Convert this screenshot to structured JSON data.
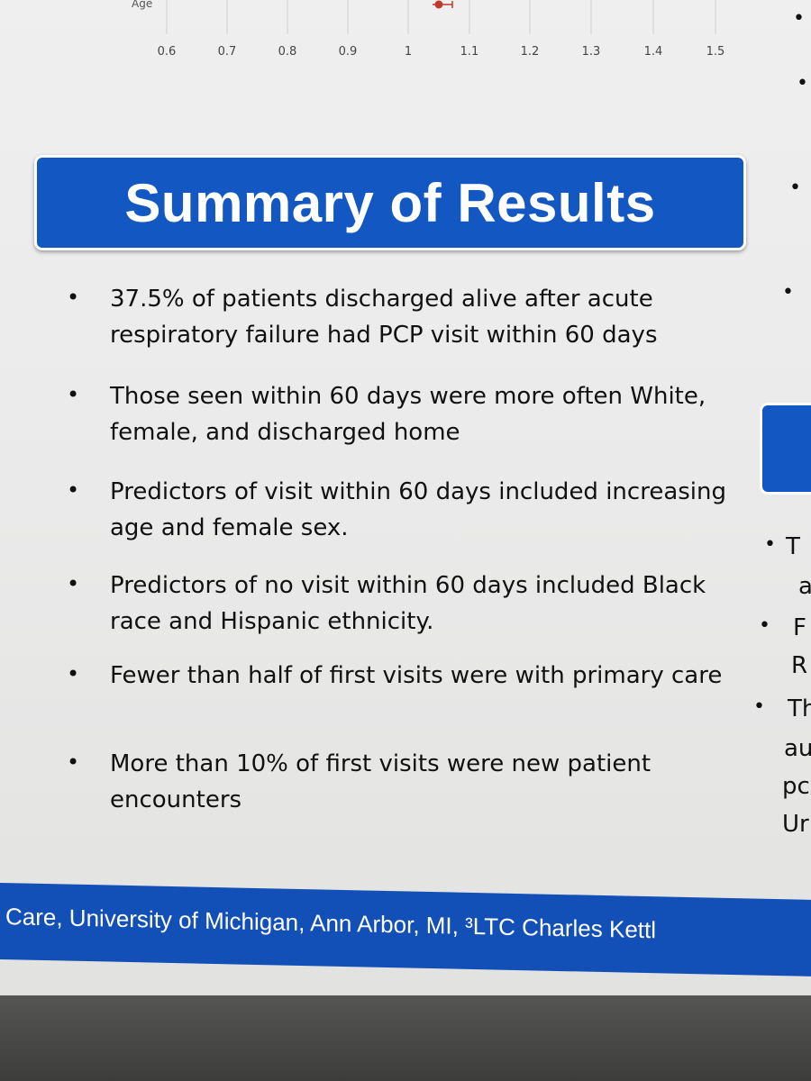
{
  "top_chart": {
    "axis_label": "Age",
    "ticks": [
      "0.6",
      "0.7",
      "0.8",
      "0.9",
      "1",
      "1.1",
      "1.2",
      "1.3",
      "1.4",
      "1.5"
    ],
    "marker_color": "#c0392b"
  },
  "summary": {
    "title": "Summary of Results",
    "bullets": [
      "37.5% of patients discharged alive after acute respiratory failure had PCP visit within 60 days",
      "Those seen within 60 days were more often White, female, and discharged home",
      "Predictors of visit within 60 days included increasing age and female sex.",
      "Predictors of no visit within 60 days included Black race and Hispanic ethnicity.",
      "Fewer than half of first visits were with primary care",
      "More than 10% of first visits were new patient encounters"
    ]
  },
  "right_column": {
    "fragments": [
      "T",
      "a",
      "F",
      "R",
      "Th",
      "au",
      "pc",
      "Ur"
    ]
  },
  "footer": {
    "affiliation_text": "Care, University of Michigan, Ann Arbor, MI, ³LTC Charles Kettl"
  },
  "colors": {
    "banner": "#1358c2",
    "footer": "#1250b8",
    "poster": "#ececec"
  }
}
